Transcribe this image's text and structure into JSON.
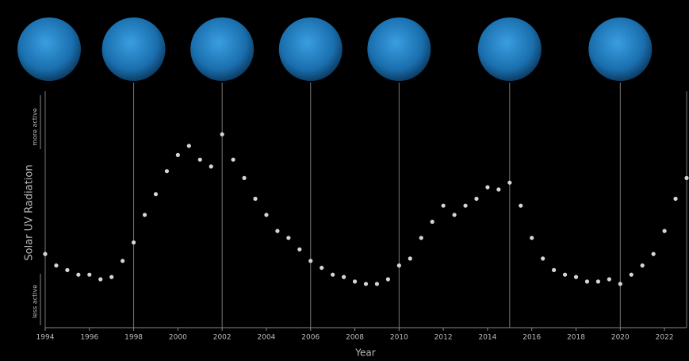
{
  "chart_data": {
    "type": "scatter",
    "x_label": "Year",
    "y_label": "Solar UV Radiation",
    "y_top_note": "more active",
    "y_bottom_note": "less active",
    "color": "#d8d4d4",
    "xlim": [
      1994,
      2023
    ],
    "xticks": [
      1994,
      1996,
      1998,
      2000,
      2002,
      2004,
      2006,
      2008,
      2010,
      2012,
      2014,
      2016,
      2018,
      2020,
      2022
    ],
    "ylim": [
      0,
      100
    ],
    "reference_lines": [
      1998,
      2002,
      2006,
      2010,
      2015,
      2020
    ],
    "x": [
      1994,
      1994.5,
      1995,
      1995.5,
      1996,
      1996.5,
      1997,
      1997.5,
      1998,
      1998.5,
      1999,
      1999.5,
      2000,
      2000.5,
      2001,
      2001.5,
      2002,
      2002.5,
      2003,
      2003.5,
      2004,
      2004.5,
      2005,
      2005.5,
      2006,
      2006.5,
      2007,
      2007.5,
      2008,
      2008.5,
      2009,
      2009.5,
      2010,
      2010.5,
      2011,
      2011.5,
      2012,
      2012.5,
      2013,
      2013.5,
      2014,
      2014.5,
      2015,
      2015.5,
      2016,
      2016.5,
      2017,
      2017.5,
      2018,
      2018.5,
      2019,
      2019.5,
      2020,
      2020.5,
      2021,
      2021.5,
      2022,
      2022.5,
      2023
    ],
    "values": [
      31,
      26,
      24,
      22,
      22,
      20,
      21,
      28,
      36,
      48,
      57,
      67,
      74,
      78,
      72,
      69,
      83,
      72,
      64,
      55,
      48,
      41,
      38,
      33,
      28,
      25,
      22,
      21,
      19,
      18,
      18,
      20,
      26,
      29,
      38,
      45,
      52,
      48,
      52,
      55,
      60,
      59,
      62,
      52,
      38,
      29,
      24,
      22,
      21,
      19,
      19,
      20,
      18,
      22,
      26,
      31,
      41,
      55,
      64
    ]
  }
}
